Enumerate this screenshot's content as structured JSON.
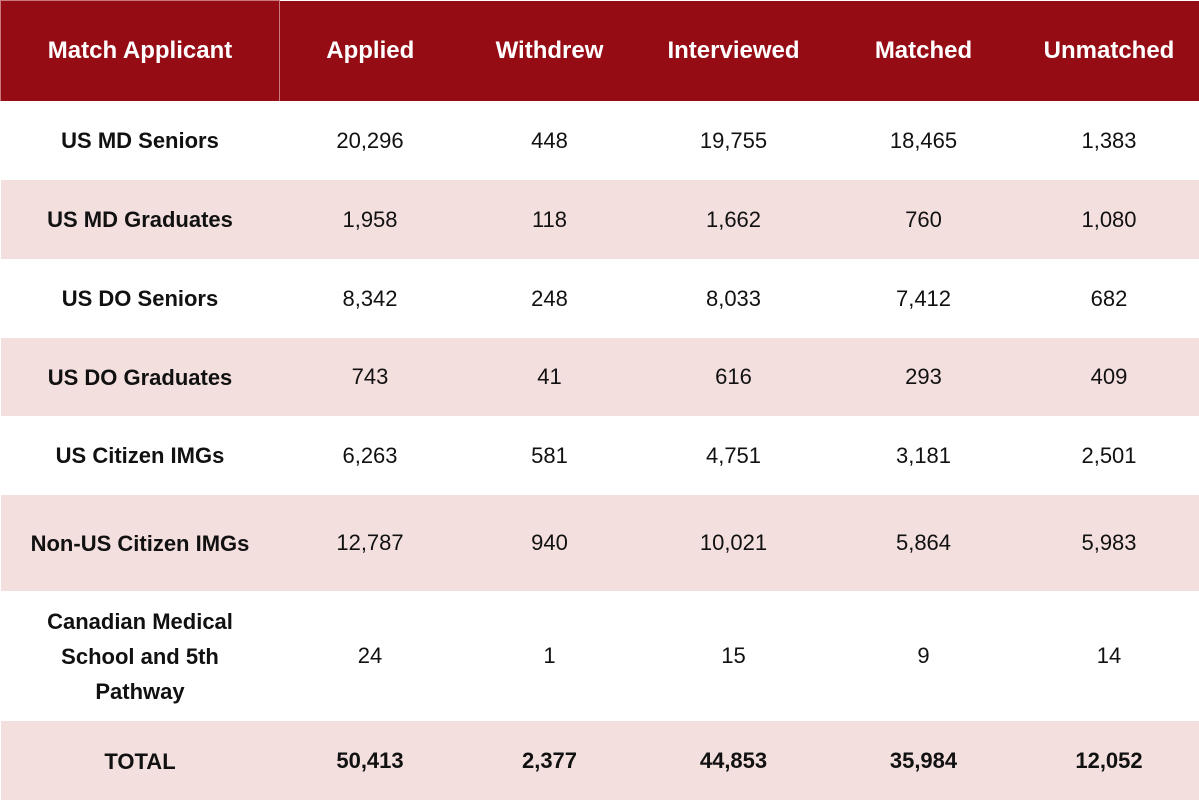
{
  "table": {
    "header": [
      "Match Applicant",
      "Applied",
      "Withdrew",
      "Interviewed",
      "Matched",
      "Unmatched"
    ],
    "rows": [
      [
        "US MD Seniors",
        "20,296",
        "448",
        "19,755",
        "18,465",
        "1,383"
      ],
      [
        "US MD Graduates",
        "1,958",
        "118",
        "1,662",
        "760",
        "1,080"
      ],
      [
        "US DO Seniors",
        "8,342",
        "248",
        "8,033",
        "7,412",
        "682"
      ],
      [
        "US DO Graduates",
        "743",
        "41",
        "616",
        "293",
        "409"
      ],
      [
        "US Citizen IMGs",
        "6,263",
        "581",
        "4,751",
        "3,181",
        "2,501"
      ],
      [
        "Non-US Citizen IMGs",
        "12,787",
        "940",
        "10,021",
        "5,864",
        "5,983"
      ],
      [
        "Canadian Medical School and 5th Pathway",
        "24",
        "1",
        "15",
        "9",
        "14"
      ]
    ],
    "total": [
      "TOTAL",
      "50,413",
      "2,377",
      "44,853",
      "35,984",
      "12,052"
    ]
  }
}
